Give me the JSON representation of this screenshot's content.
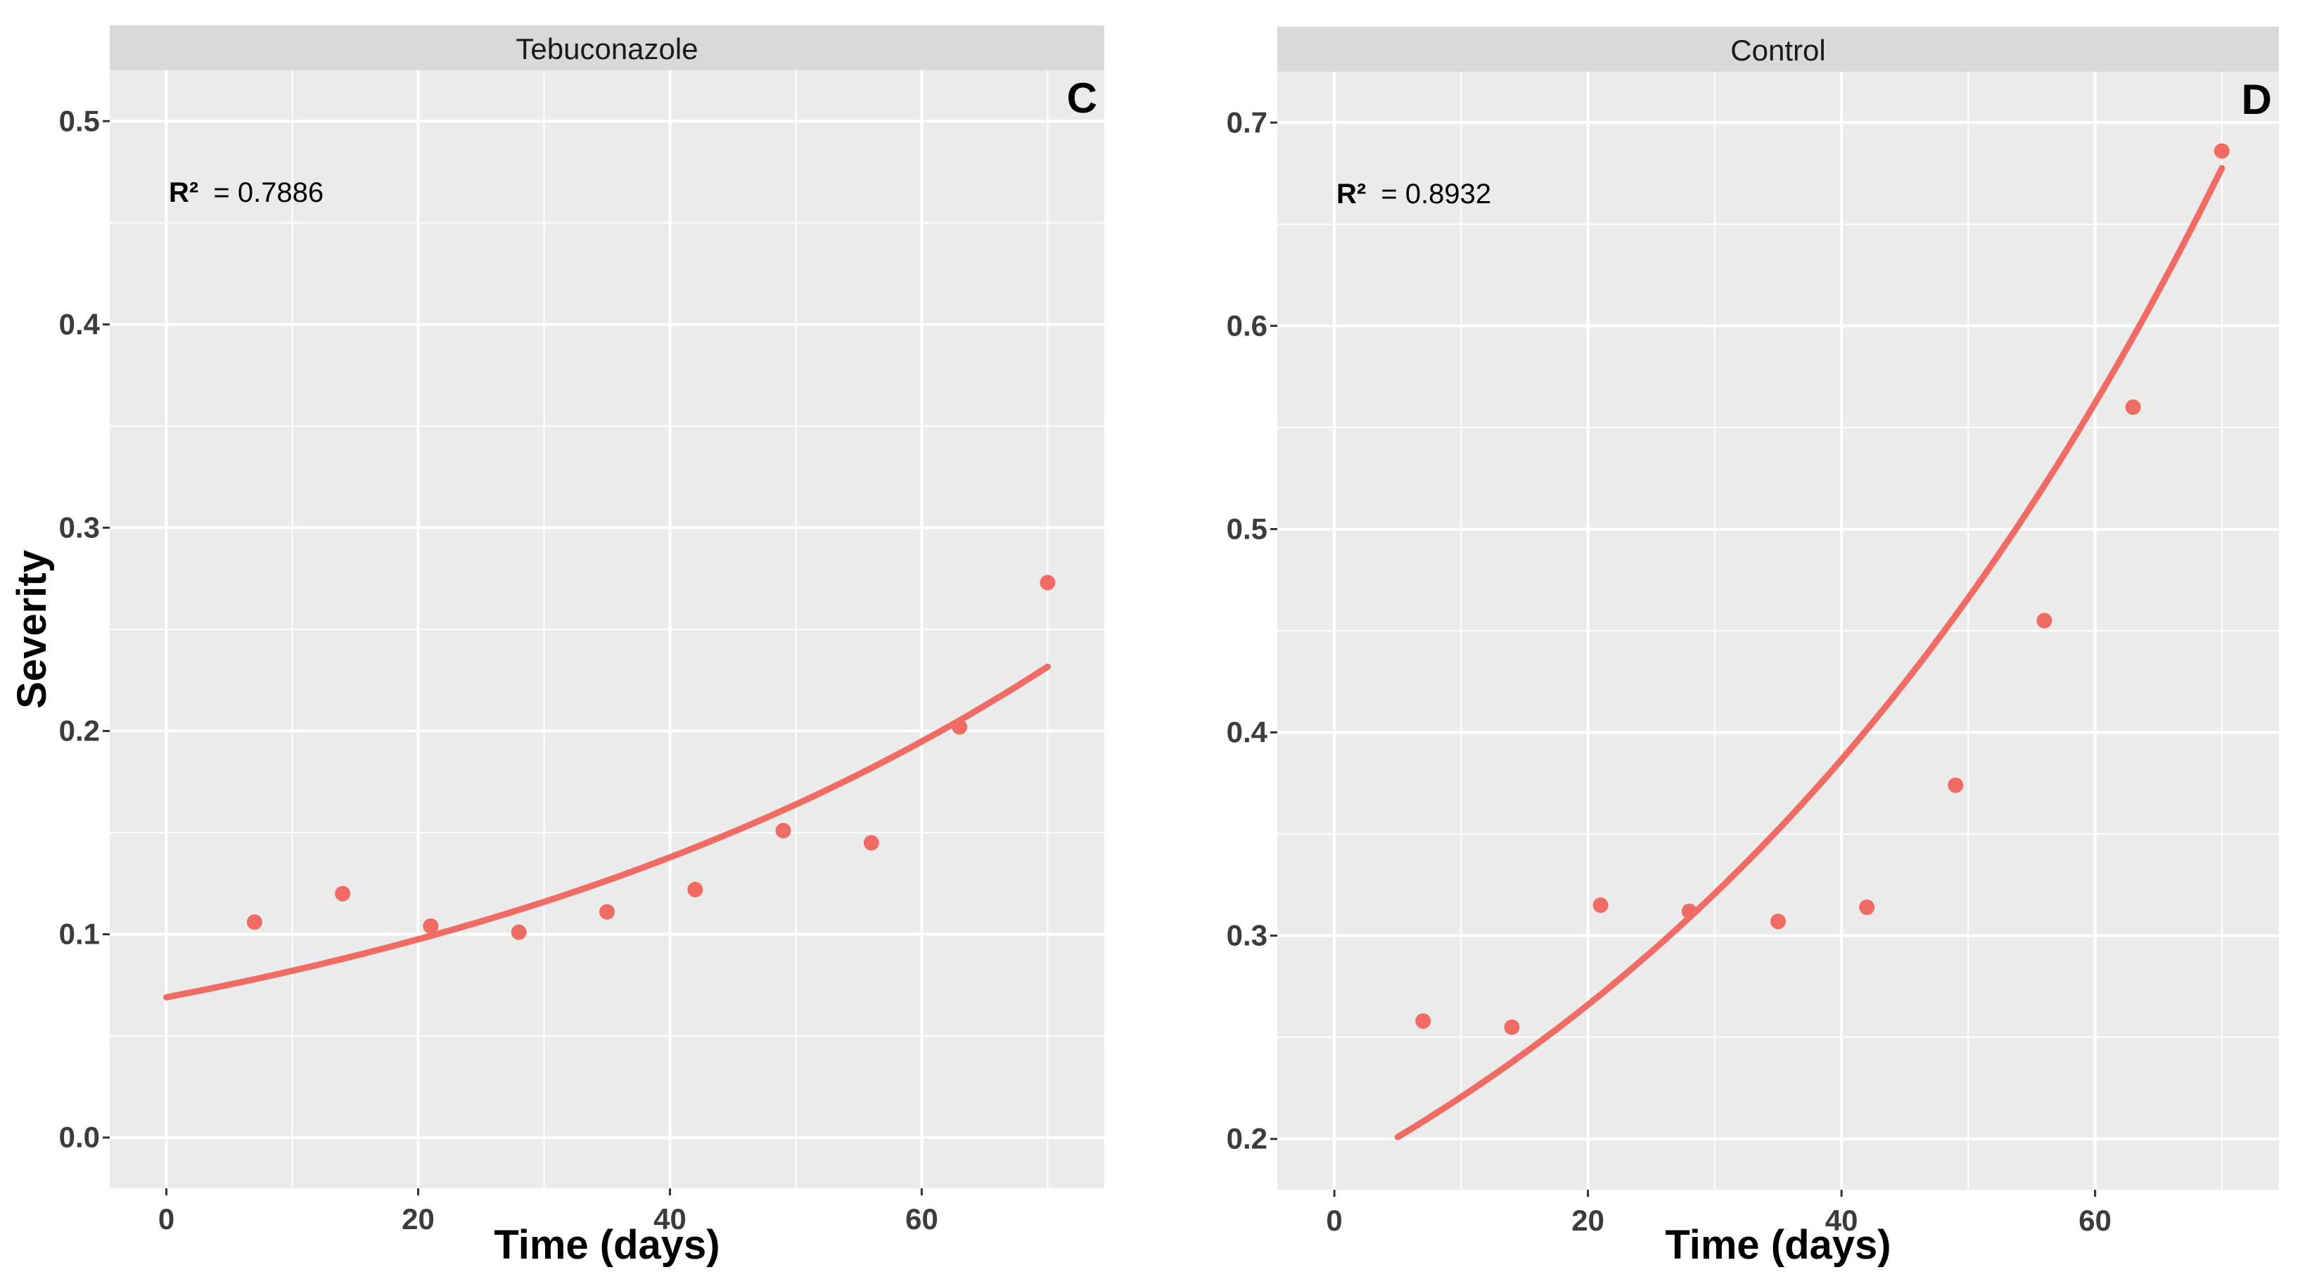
{
  "chart_data": [
    {
      "type": "scatter",
      "panel": "C",
      "strip_title": "Tebuconazole",
      "r2_label": "R²",
      "r2_value": "= 0.7886",
      "xlabel": "Time (days)",
      "ylabel": "Severity",
      "xlim": [
        -4.5,
        74.5
      ],
      "ylim": [
        -0.025,
        0.525
      ],
      "xticks": [
        0,
        20,
        40,
        60
      ],
      "xtick_labels": [
        "0",
        "20",
        "40",
        "60"
      ],
      "yticks": [
        0.0,
        0.1,
        0.2,
        0.3,
        0.4,
        0.5
      ],
      "ytick_labels": [
        "0.0",
        "0.1",
        "0.2",
        "0.3",
        "0.4",
        "0.5"
      ],
      "points": {
        "x": [
          7,
          14,
          21,
          28,
          35,
          42,
          49,
          56,
          63,
          70
        ],
        "y": [
          0.106,
          0.12,
          0.104,
          0.101,
          0.111,
          0.122,
          0.151,
          0.145,
          0.202,
          0.273
        ]
      },
      "fit": {
        "model": "exponential",
        "a": 0.069,
        "b": 0.0173,
        "x_start": 0,
        "x_end": 70
      },
      "colors": {
        "point": "#ef6b63",
        "line": "#ef6b63",
        "panel_bg": "#ebebeb",
        "strip_bg": "#d9d9d9",
        "grid": "#ffffff"
      }
    },
    {
      "type": "scatter",
      "panel": "D",
      "strip_title": "Control",
      "r2_label": "R²",
      "r2_value": "= 0.8932",
      "xlabel": "Time (days)",
      "ylabel": "",
      "xlim": [
        -4.5,
        74.5
      ],
      "ylim": [
        0.175,
        0.725
      ],
      "xticks": [
        0,
        20,
        40,
        60
      ],
      "xtick_labels": [
        "0",
        "20",
        "40",
        "60"
      ],
      "yticks": [
        0.2,
        0.3,
        0.4,
        0.5,
        0.6,
        0.7
      ],
      "ytick_labels": [
        "0.2",
        "0.3",
        "0.4",
        "0.5",
        "0.6",
        "0.7"
      ],
      "points": {
        "x": [
          7,
          14,
          21,
          28,
          35,
          42,
          49,
          56,
          63,
          70
        ],
        "y": [
          0.258,
          0.255,
          0.315,
          0.312,
          0.307,
          0.314,
          0.374,
          0.455,
          0.56,
          0.686
        ]
      },
      "fit": {
        "model": "exponential",
        "a": 0.183,
        "b": 0.0187,
        "x_start": 5,
        "x_end": 70
      },
      "colors": {
        "point": "#ef6b63",
        "line": "#ef6b63",
        "panel_bg": "#ebebeb",
        "strip_bg": "#d9d9d9",
        "grid": "#ffffff"
      }
    }
  ]
}
